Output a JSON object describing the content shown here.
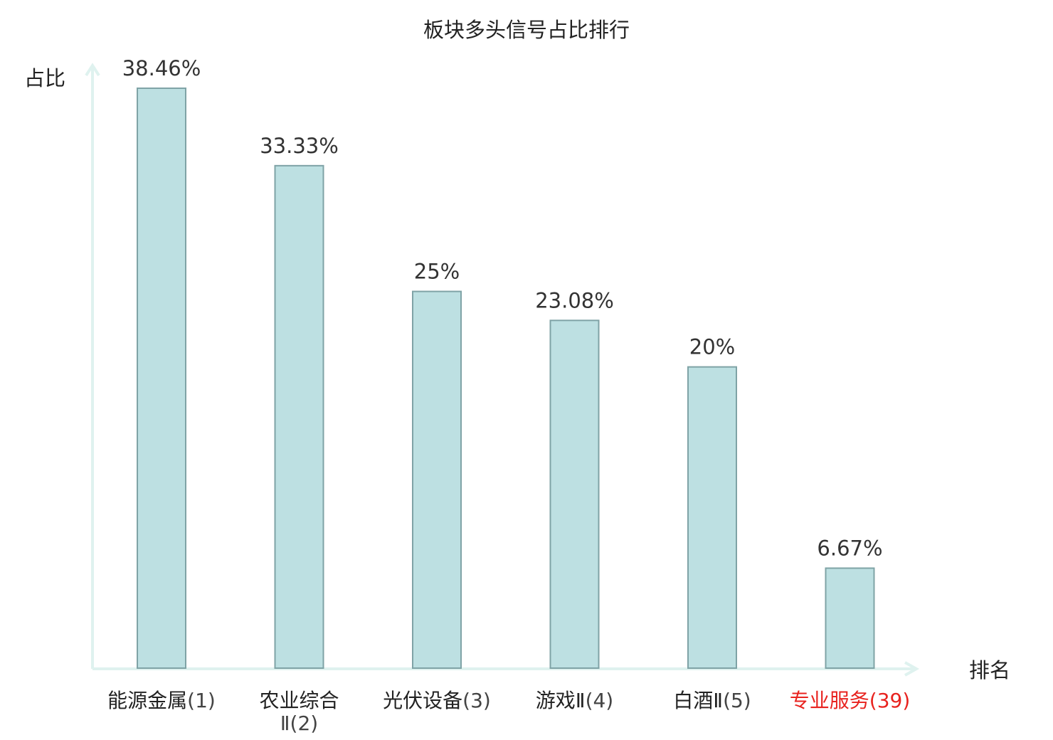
{
  "chart_data": {
    "type": "bar",
    "title": "板块多头信号占比排行",
    "ylabel": "占比",
    "xlabel": "排名",
    "ylim": [
      0,
      40
    ],
    "grid": false,
    "legend": "none",
    "categories": [
      {
        "name": "能源金属",
        "rank": "(1)",
        "highlight": false
      },
      {
        "name": "农业综合Ⅱ",
        "rank": "(2)",
        "highlight": false
      },
      {
        "name": "光伏设备",
        "rank": "(3)",
        "highlight": false
      },
      {
        "name": "游戏Ⅱ",
        "rank": "(4)",
        "highlight": false
      },
      {
        "name": "白酒Ⅱ",
        "rank": "(5)",
        "highlight": false
      },
      {
        "name": "专业服务",
        "rank": "(39)",
        "highlight": true
      }
    ],
    "values": [
      38.46,
      33.33,
      25,
      23.08,
      20,
      6.67
    ],
    "value_labels": [
      "38.46%",
      "33.33%",
      "25%",
      "23.08%",
      "20%",
      "6.67%"
    ],
    "colors": {
      "bar_fill": "#bde0e2",
      "bar_stroke": "#7fa3a6",
      "axis": "#dff2ef",
      "text": "#222222",
      "rank_text": "#444444",
      "highlight": "#e8231f"
    }
  }
}
